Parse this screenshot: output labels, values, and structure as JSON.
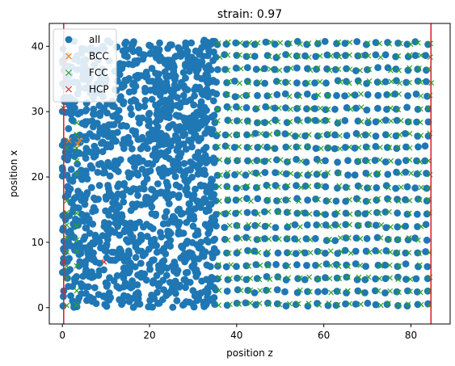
{
  "chart_data": {
    "type": "scatter",
    "title": "strain: 0.97",
    "xlabel": "position z",
    "ylabel": "position x",
    "xlim": [
      -3,
      89
    ],
    "ylim": [
      -2.5,
      43.5
    ],
    "xticks": [
      0,
      20,
      40,
      60,
      80
    ],
    "yticks": [
      0,
      10,
      20,
      30,
      40
    ],
    "xtick_labels": [
      "0",
      "20",
      "40",
      "60",
      "80"
    ],
    "ytick_labels": [
      "0",
      "10",
      "20",
      "30",
      "40"
    ],
    "vlines": [
      {
        "x": 0.3,
        "color": "#d62728"
      },
      {
        "x": 84.6,
        "color": "#d62728"
      }
    ],
    "legend": {
      "location": "top-left",
      "entries": [
        {
          "label": "all",
          "marker": "o",
          "color": "#1f77b4"
        },
        {
          "label": "BCC",
          "marker": "x",
          "color": "#ff7f0e"
        },
        {
          "label": "FCC",
          "marker": "x",
          "color": "#2ca02c"
        },
        {
          "label": "HCP",
          "marker": "x",
          "color": "#d62728"
        }
      ]
    },
    "series": [
      {
        "name": "all",
        "marker": "circle",
        "color": "#1f77b4",
        "description_of_extent": "dense atoms",
        "disordered_region": {
          "z": [
            0,
            35
          ],
          "x": [
            0,
            41
          ]
        },
        "crystal_region": {
          "z": [
            33,
            85
          ],
          "x": [
            0,
            40.5
          ]
        },
        "layer_spacing_x": 2.0,
        "column_spacing_z": 2.3
      },
      {
        "name": "BCC",
        "marker": "x",
        "color": "#ff7f0e",
        "points": [
          [
            1.5,
            25.6
          ],
          [
            4.0,
            25.6
          ],
          [
            3.5,
            25.0
          ]
        ]
      },
      {
        "name": "FCC",
        "marker": "x",
        "color": "#2ca02c",
        "crystal_region": {
          "z": [
            35,
            85
          ],
          "x": [
            0,
            40.5
          ]
        },
        "left_strip": {
          "z": [
            1,
            5
          ],
          "x": [
            0,
            30
          ]
        }
      },
      {
        "name": "HCP",
        "marker": "x",
        "color": "#d62728",
        "points": [
          [
            9.6,
            7.0
          ],
          [
            0.3,
            7.0
          ],
          [
            0.3,
            2.6
          ],
          [
            0.3,
            37.8
          ],
          [
            0.3,
            30.5
          ]
        ]
      }
    ]
  }
}
